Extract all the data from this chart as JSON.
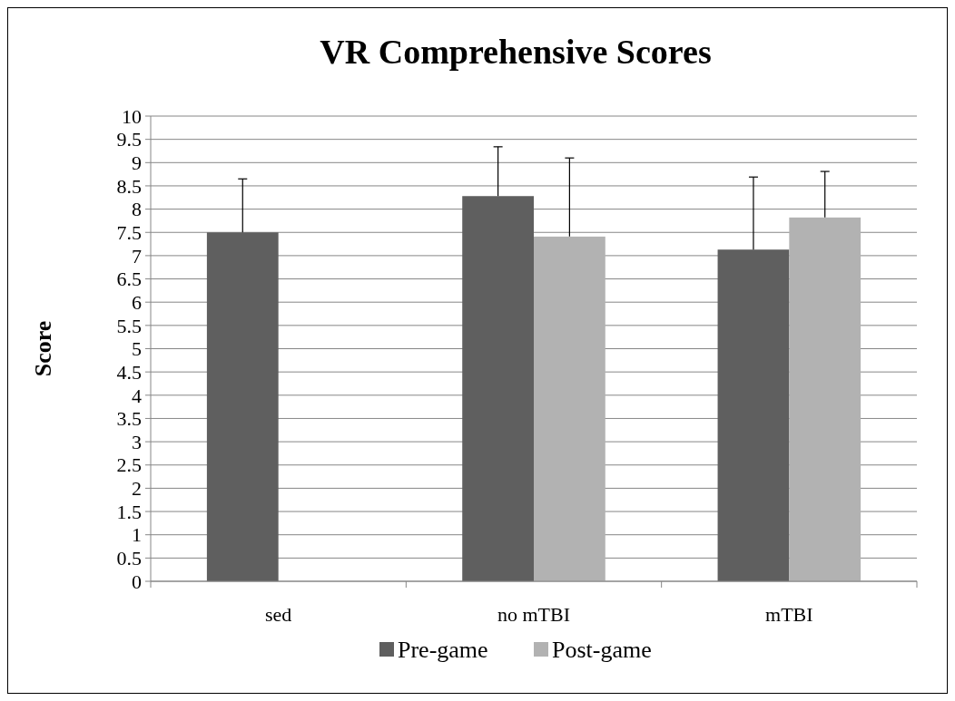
{
  "chart_data": {
    "type": "bar",
    "title": "VR Comprehensive Scores",
    "ylabel": "Score",
    "categories": [
      "sed",
      "no mTBI",
      "mTBI"
    ],
    "series": [
      {
        "name": "Pre-game",
        "color": "#5f5f5f",
        "values": [
          7.5,
          8.28,
          7.13
        ],
        "errors": [
          [
            7.5,
            8.65
          ],
          [
            8.28,
            9.34
          ],
          [
            7.13,
            8.69
          ]
        ]
      },
      {
        "name": "Post-game",
        "color": "#b2b2b2",
        "values": [
          null,
          7.41,
          7.82
        ],
        "errors": [
          null,
          [
            7.41,
            9.1
          ],
          [
            7.82,
            8.81
          ]
        ]
      }
    ],
    "ylim": [
      0,
      10
    ],
    "yticks": [
      0,
      0.5,
      1,
      1.5,
      2,
      2.5,
      3,
      3.5,
      4,
      4.5,
      5,
      5.5,
      6,
      6.5,
      7,
      7.5,
      8,
      8.5,
      9,
      9.5,
      10
    ],
    "grid": "y",
    "legend": "bottom"
  }
}
